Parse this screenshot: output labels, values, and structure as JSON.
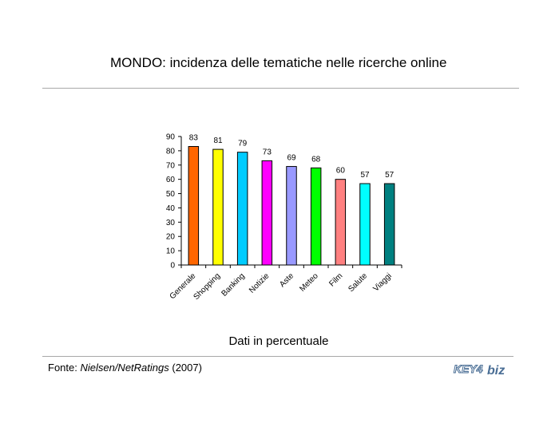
{
  "title": "MONDO: incidenza delle tematiche nelle ricerche online",
  "note": "Dati in percentuale",
  "source": {
    "prefix": "Fonte: ",
    "name": "Nielsen/NetRatings",
    "year": " (2007)"
  },
  "logo": {
    "left_text": "KEY4",
    "right_text": "biz",
    "color": "#4a6e95"
  },
  "chart_data": {
    "type": "bar",
    "categories": [
      "Generale",
      "Shopping",
      "Banking",
      "Notizie",
      "Aste",
      "Meteo",
      "Film",
      "Salute",
      "Viaggi"
    ],
    "values": [
      83,
      81,
      79,
      73,
      69,
      68,
      60,
      57,
      57
    ],
    "colors": [
      "#ff6600",
      "#ffff00",
      "#00ccff",
      "#ff00ff",
      "#9999ff",
      "#00ff00",
      "#ff8080",
      "#00ffff",
      "#008080"
    ],
    "ylim": [
      0,
      90
    ],
    "yticks": [
      0,
      10,
      20,
      30,
      40,
      50,
      60,
      70,
      80,
      90
    ],
    "grid": false,
    "legend": "none"
  }
}
